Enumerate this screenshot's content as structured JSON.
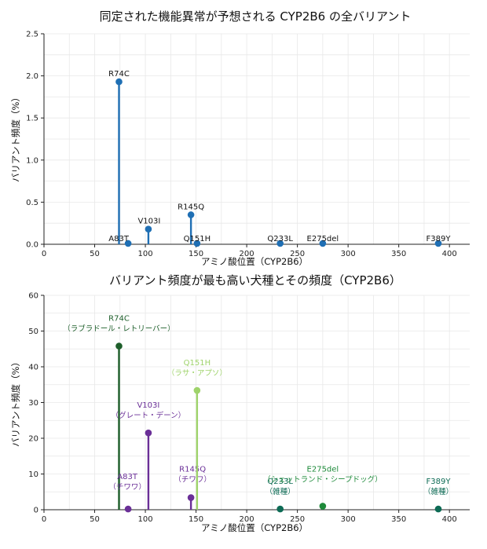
{
  "chart_data": [
    {
      "type": "lollipop",
      "title": "同定された機能異常が予想される CYP2B6 の全バリアント",
      "xlabel": "アミノ酸位置（CYP2B6）",
      "ylabel": "バリアント頻度（%）",
      "xlim": [
        0,
        420
      ],
      "ylim": [
        0,
        2.5
      ],
      "xticks": [
        0,
        50,
        100,
        150,
        200,
        250,
        300,
        350,
        400
      ],
      "yticks": [
        0.0,
        0.5,
        1.0,
        1.5,
        2.0,
        2.5
      ],
      "ytick_labels": [
        "0.0",
        "0.5",
        "1.0",
        "1.5",
        "2.0",
        "2.5"
      ],
      "grid": true,
      "color": "#1f6fb4",
      "points": [
        {
          "label": "R74C",
          "x": 74,
          "y": 1.93
        },
        {
          "label": "A83T",
          "x": 83,
          "y": 0.01
        },
        {
          "label": "V103I",
          "x": 103,
          "y": 0.18
        },
        {
          "label": "R145Q",
          "x": 145,
          "y": 0.35
        },
        {
          "label": "Q151H",
          "x": 151,
          "y": 0.01
        },
        {
          "label": "Q233L",
          "x": 233,
          "y": 0.01
        },
        {
          "label": "E275del",
          "x": 275,
          "y": 0.01
        },
        {
          "label": "F389Y",
          "x": 389,
          "y": 0.01
        }
      ]
    },
    {
      "type": "lollipop",
      "title": "バリアント頻度が最も高い犬種とその頻度（CYP2B6）",
      "xlabel": "アミノ酸位置（CYP2B6）",
      "ylabel": "バリアント頻度（%）",
      "xlim": [
        0,
        420
      ],
      "ylim": [
        0,
        60
      ],
      "xticks": [
        0,
        50,
        100,
        150,
        200,
        250,
        300,
        350,
        400
      ],
      "yticks": [
        0,
        10,
        20,
        30,
        40,
        50,
        60
      ],
      "ytick_labels": [
        "0",
        "10",
        "20",
        "30",
        "40",
        "50",
        "60"
      ],
      "grid": true,
      "points": [
        {
          "label": "R74C",
          "breed": "（ラブラドール・レトリーバー）",
          "x": 74,
          "y": 45.8,
          "color": "#1d5e2a"
        },
        {
          "label": "A83T",
          "breed": "（チワワ）",
          "x": 83,
          "y": 0.2,
          "color": "#6a2f97"
        },
        {
          "label": "V103I",
          "breed": "（グレート・デーン）",
          "x": 103,
          "y": 21.5,
          "color": "#6a2f97"
        },
        {
          "label": "R145Q",
          "breed": "（チワワ）",
          "x": 145,
          "y": 3.4,
          "color": "#6a2f97"
        },
        {
          "label": "Q151H",
          "breed": "（ラサ・アプソ）",
          "x": 151,
          "y": 33.4,
          "color": "#9fd36b"
        },
        {
          "label": "Q233L",
          "breed": "（雑種）",
          "x": 233,
          "y": 0.2,
          "color": "#0d6b55"
        },
        {
          "label": "E275del",
          "breed": "（シェットランド・シープドッグ）",
          "x": 275,
          "y": 1.0,
          "color": "#1e8a3a"
        },
        {
          "label": "F389Y",
          "breed": "（雑種）",
          "x": 389,
          "y": 0.2,
          "color": "#0d6b55"
        }
      ]
    }
  ]
}
